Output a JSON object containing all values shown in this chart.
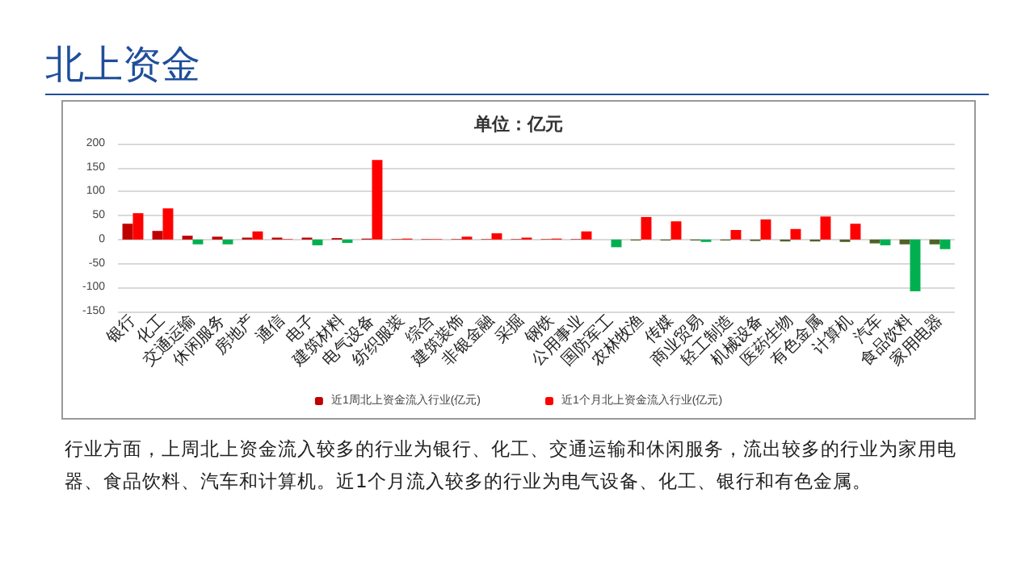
{
  "chart_data": {
    "type": "bar",
    "title": "北上资金",
    "subtitle": "单位：亿元",
    "categories": [
      "银行",
      "化工",
      "交通运输",
      "休闲服务",
      "房地产",
      "通信",
      "电子",
      "建筑材料",
      "电气设备",
      "纺织服装",
      "综合",
      "建筑装饰",
      "非银金融",
      "采掘",
      "钢铁",
      "公用事业",
      "国防军工",
      "农林牧渔",
      "传媒",
      "商业贸易",
      "轻工制造",
      "机械设备",
      "医药生物",
      "有色金属",
      "计算机",
      "汽车",
      "食品饮料",
      "家用电器"
    ],
    "series": [
      {
        "name": "近1周北上资金流入行业(亿元)",
        "color": "#c00000",
        "values": [
          33,
          18,
          8,
          6,
          4,
          4,
          4,
          3,
          2,
          1,
          1,
          1,
          1,
          1,
          1,
          1,
          0,
          -2,
          -2,
          -2,
          -2,
          -3,
          -4,
          -4,
          -5,
          -8,
          -10,
          -10
        ],
        "colors": [
          "#c00000",
          "#c00000",
          "#c00000",
          "#c00000",
          "#c00000",
          "#c00000",
          "#c00000",
          "#c00000",
          "#c00000",
          "#c00000",
          "#c00000",
          "#c00000",
          "#c00000",
          "#c00000",
          "#c00000",
          "#c00000",
          "#4f6228",
          "#4f6228",
          "#4f6228",
          "#4f6228",
          "#4f6228",
          "#4f6228",
          "#4f6228",
          "#4f6228",
          "#4f6228",
          "#4f6228",
          "#4f6228",
          "#4f6228"
        ]
      },
      {
        "name": "近1个月北上资金流入行业(亿元)",
        "color": "#ff0000",
        "values": [
          55,
          65,
          -10,
          -10,
          17,
          1,
          -12,
          -7,
          166,
          2,
          1,
          6,
          13,
          4,
          2,
          17,
          -16,
          47,
          38,
          -5,
          20,
          42,
          22,
          48,
          33,
          -12,
          -108,
          -20
        ],
        "colors": [
          "#ff0000",
          "#ff0000",
          "#00b050",
          "#00b050",
          "#ff0000",
          "#ff0000",
          "#00b050",
          "#00b050",
          "#ff0000",
          "#ff0000",
          "#ff0000",
          "#ff0000",
          "#ff0000",
          "#ff0000",
          "#ff0000",
          "#ff0000",
          "#00b050",
          "#ff0000",
          "#ff0000",
          "#00b050",
          "#ff0000",
          "#ff0000",
          "#ff0000",
          "#ff0000",
          "#ff0000",
          "#00b050",
          "#00b050",
          "#00b050"
        ]
      }
    ],
    "ylim": [
      -150,
      200
    ],
    "yticks": [
      -150,
      -100,
      -50,
      0,
      50,
      100,
      150,
      200
    ],
    "grid": "y",
    "legend": "bottom",
    "annotations": [
      "行业方面，上周北上资金流入较多的行业为银行、化工、交通运输和休闲服务，流出较多的行业为家用电器、食品饮料、汽车和计算机。近1个月流入较多的行业为电气设备、化工、银行和有色金属。"
    ]
  }
}
